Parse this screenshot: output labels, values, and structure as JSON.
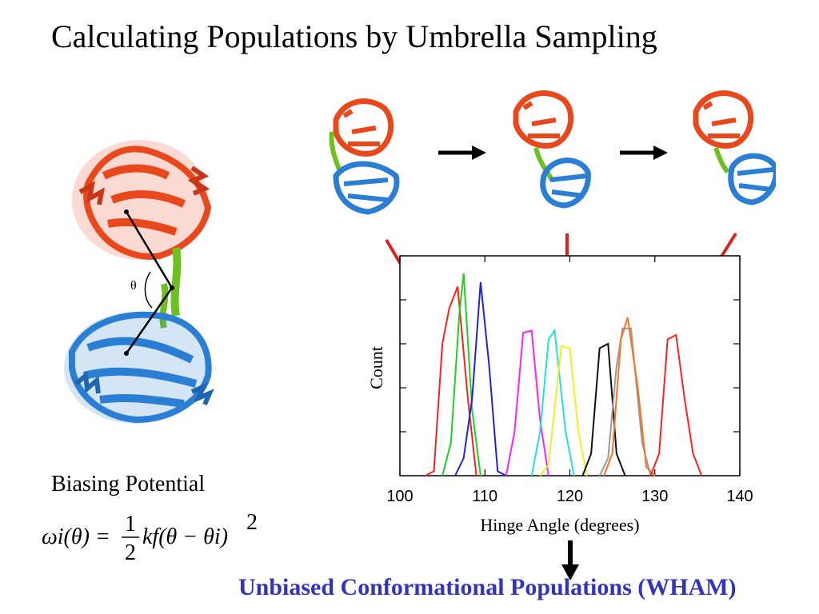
{
  "title": "Calculating Populations by Umbrella Sampling",
  "theta_symbol": "θ",
  "biasing_label": "Biasing Potential",
  "formula": {
    "lhs": "ωi(θ) =",
    "frac_num": "1",
    "frac_den": "2",
    "rhs": "kf(θ − θi)",
    "power": "2"
  },
  "result_text": "Unbiased Conformational Populations (WHAM)",
  "colors": {
    "protein_top": "#e8481c",
    "protein_bottom": "#2a7fd4",
    "hinge": "#6cc01f",
    "red_arrow": "#e02020",
    "result": "#3333bb"
  },
  "chart_data": {
    "type": "line",
    "title": "",
    "xlabel": "Hinge Angle (degrees)",
    "ylabel": "Count",
    "xlim": [
      100,
      140
    ],
    "xticks": [
      100,
      110,
      120,
      130,
      140
    ],
    "ylim": [
      0,
      1
    ],
    "series": [
      {
        "color": "#ff2020",
        "x": [
          103,
          104,
          105,
          105.8,
          106.8,
          108,
          109
        ],
        "y": [
          0,
          0.02,
          0.6,
          0.76,
          0.86,
          0.35,
          0
        ]
      },
      {
        "color": "#20d020",
        "x": [
          105,
          106,
          107,
          107.5,
          108.5,
          109.5
        ],
        "y": [
          0,
          0.15,
          0.74,
          0.92,
          0.3,
          0
        ]
      },
      {
        "color": "#2020e0",
        "x": [
          106.5,
          107.5,
          108.5,
          109.5,
          110.5,
          111.5,
          112.5
        ],
        "y": [
          0,
          0.08,
          0.35,
          0.88,
          0.5,
          0.02,
          0
        ]
      },
      {
        "color": "#ff20ff",
        "x": [
          112.5,
          113.5,
          114.5,
          115.5,
          116.5,
          117.5
        ],
        "y": [
          0,
          0.2,
          0.65,
          0.66,
          0.25,
          0
        ]
      },
      {
        "color": "#20e0e0",
        "x": [
          115.5,
          116.5,
          117.5,
          118.2,
          119.5,
          120.5
        ],
        "y": [
          0,
          0.2,
          0.62,
          0.66,
          0.2,
          0
        ]
      },
      {
        "color": "#f0f020",
        "x": [
          116.5,
          117.5,
          119,
          120,
          121,
          122
        ],
        "y": [
          0,
          0.05,
          0.59,
          0.58,
          0.2,
          0
        ]
      },
      {
        "color": "#111111",
        "x": [
          121.5,
          122.5,
          123.5,
          124.5,
          125.5,
          126.5
        ],
        "y": [
          0,
          0.1,
          0.58,
          0.6,
          0.1,
          0
        ]
      },
      {
        "color": "#999999",
        "x": [
          123.5,
          124.5,
          125.5,
          126.2,
          127.2,
          128.5,
          129.5
        ],
        "y": [
          0,
          0.08,
          0.5,
          0.67,
          0.67,
          0.15,
          0
        ]
      },
      {
        "color": "#ff7020",
        "x": [
          124,
          125,
          126,
          126.8,
          128,
          129,
          130
        ],
        "y": [
          0,
          0.1,
          0.62,
          0.72,
          0.4,
          0.04,
          0
        ]
      },
      {
        "color": "#ff2020",
        "x": [
          129.5,
          130.5,
          131.5,
          132.5,
          133.5,
          134.5,
          135.5
        ],
        "y": [
          0,
          0.1,
          0.62,
          0.64,
          0.35,
          0.1,
          0
        ]
      }
    ]
  }
}
